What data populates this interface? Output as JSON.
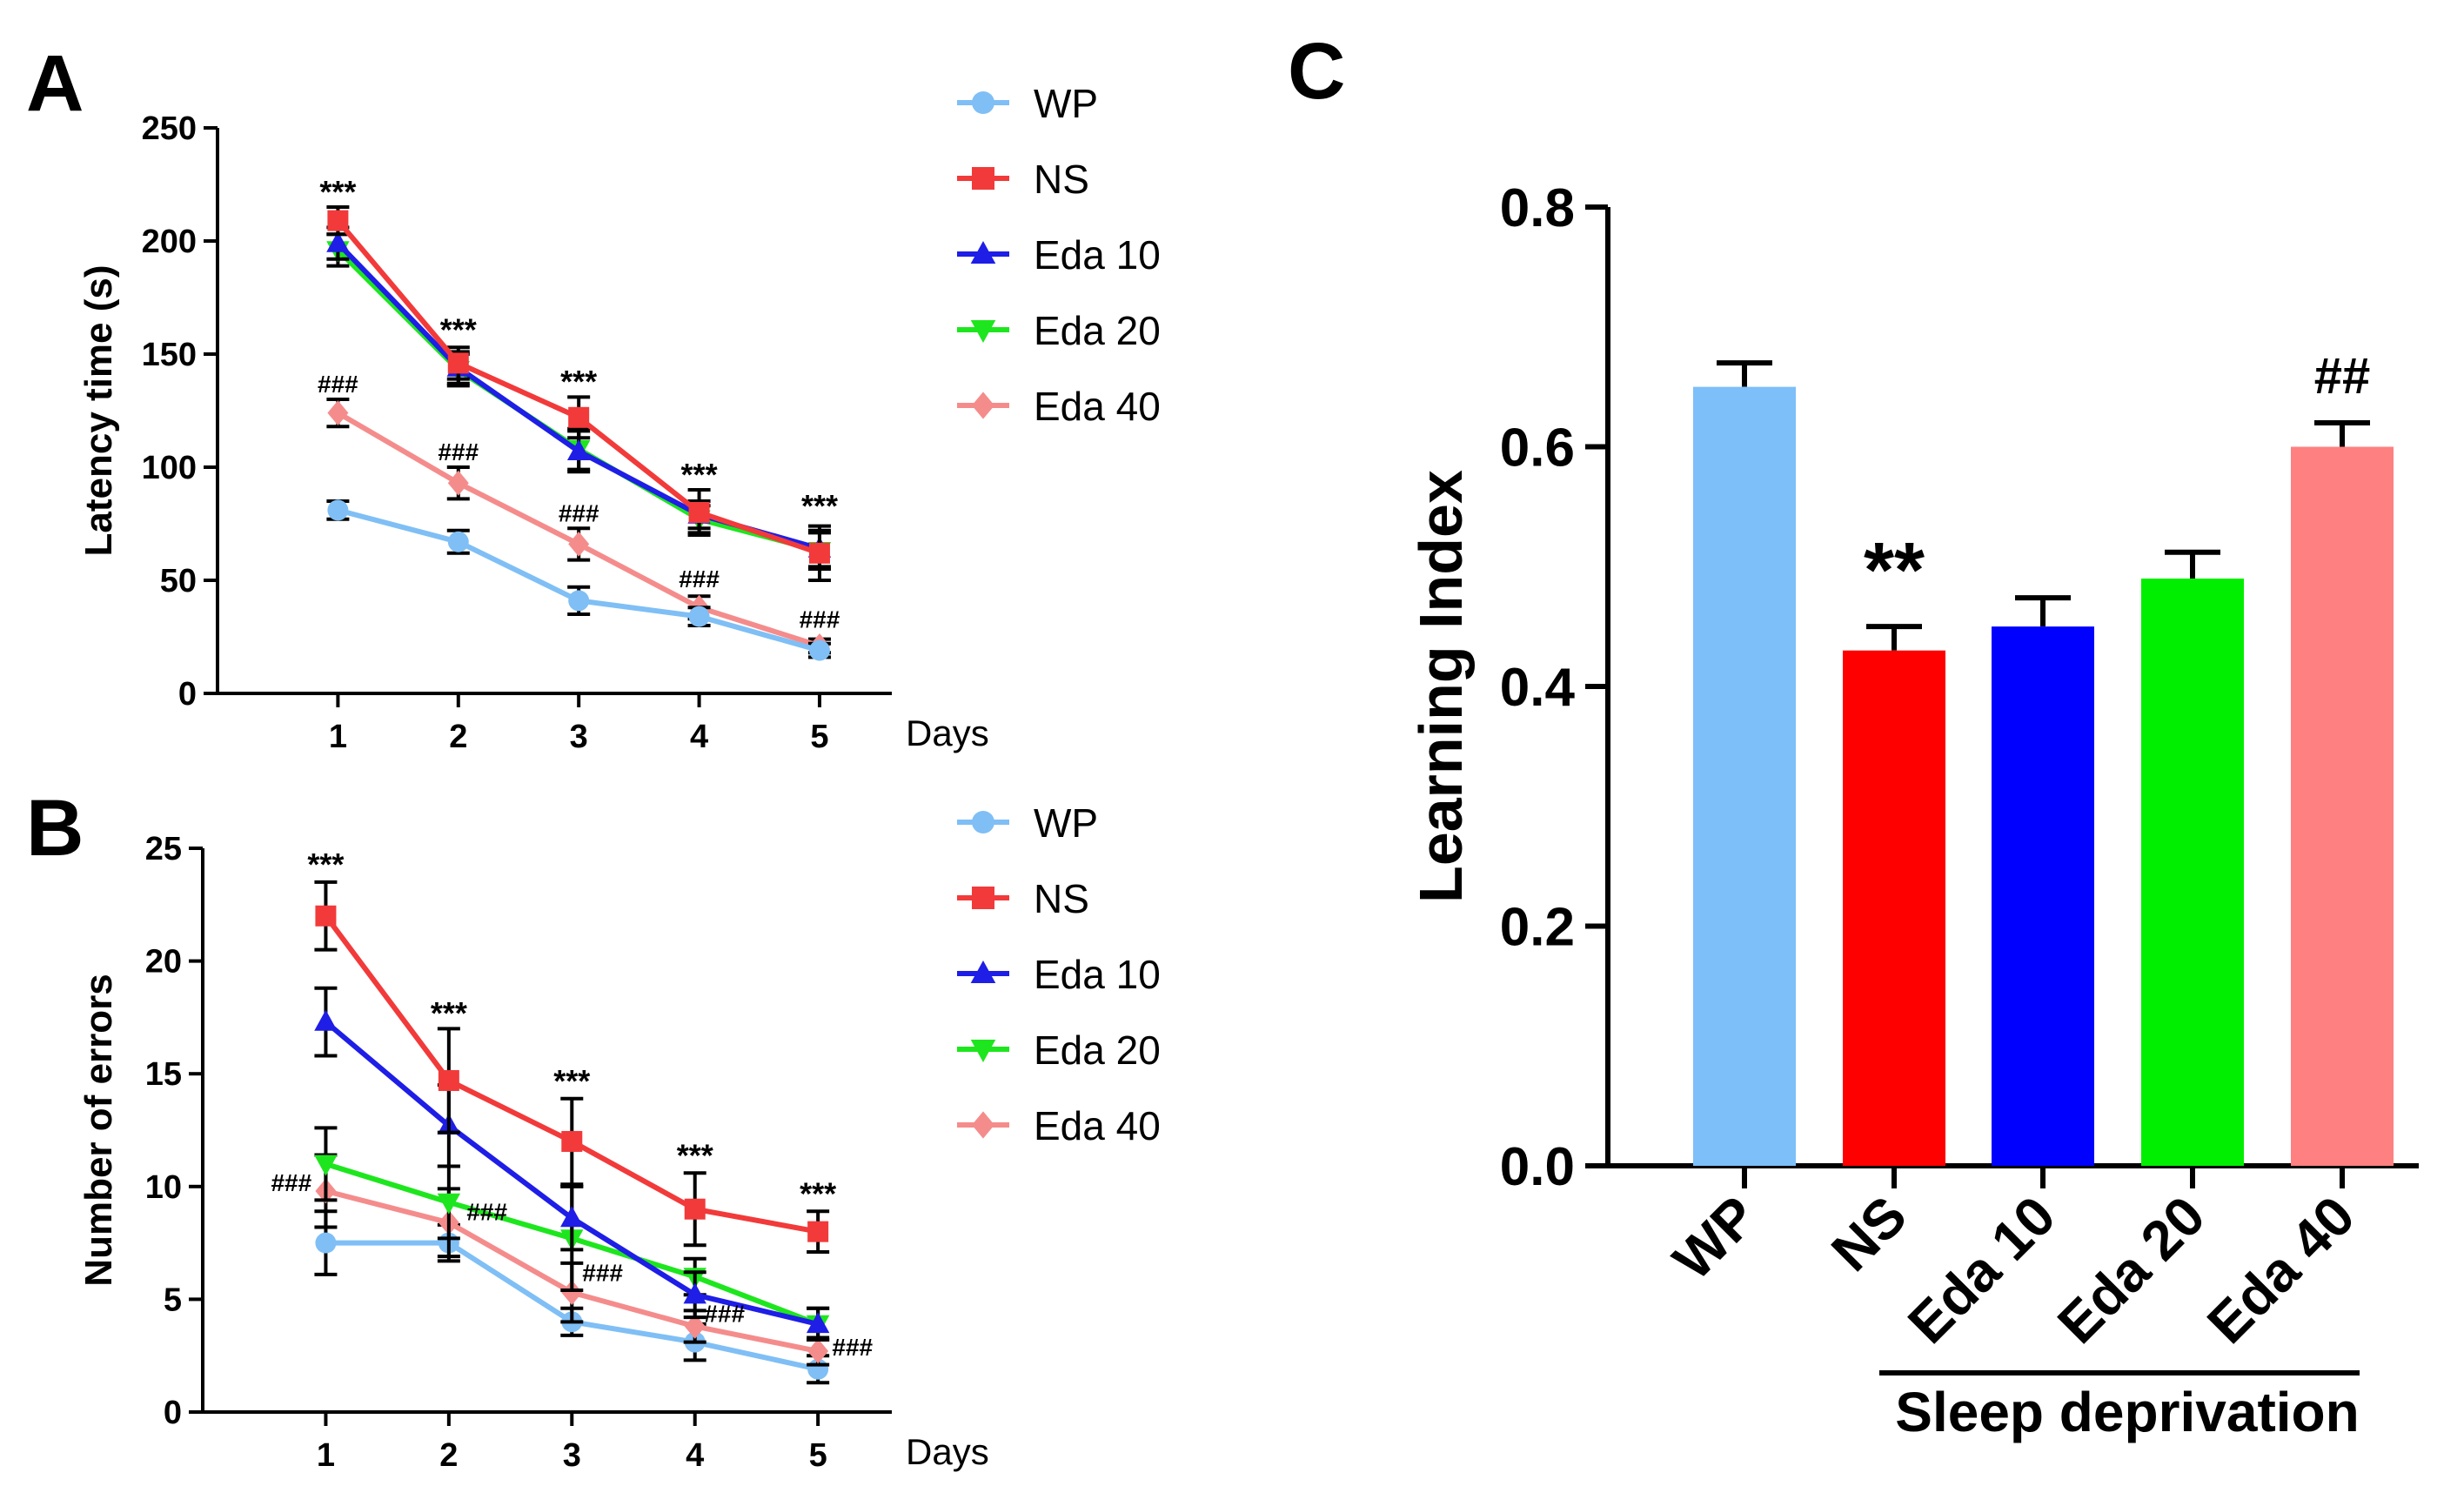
{
  "figure": {
    "colors": {
      "WP": "#7fbff5",
      "NS": "#f23a3a",
      "Eda 10": "#1e1ee6",
      "Eda 20": "#1ee61e",
      "Eda 40": "#f58c8c",
      "axis": "#000000",
      "bar_WP": "#7dbff9",
      "bar_NS": "#ff0000",
      "bar_Eda 10": "#0000ff",
      "bar_Eda 20": "#00ee00",
      "bar_Eda 40": "#ff8080"
    },
    "markers": {
      "WP": "circle",
      "NS": "square",
      "Eda 10": "triangle-up",
      "Eda 20": "triangle-down",
      "Eda 40": "diamond"
    }
  },
  "chart_data": [
    {
      "panel": "A",
      "type": "line",
      "ylabel": "Latency time (s)",
      "xlabel": "Days",
      "x": [
        1,
        2,
        3,
        4,
        5
      ],
      "xlim": [
        0,
        5.6
      ],
      "ylim": [
        0,
        250
      ],
      "yticks": [
        0,
        50,
        100,
        150,
        200,
        250
      ],
      "xticks": [
        1,
        2,
        3,
        4,
        5
      ],
      "legend": [
        "WP",
        "NS",
        "Eda 10",
        "Eda 20",
        "Eda 40"
      ],
      "series": [
        {
          "name": "Eda 20",
          "values": [
            196,
            143,
            108,
            77,
            63
          ],
          "errors": [
            7,
            7,
            9,
            6,
            8
          ]
        },
        {
          "name": "Eda 10",
          "values": [
            199,
            144,
            107,
            79,
            64
          ],
          "errors": [
            7,
            7,
            9,
            6,
            8
          ]
        },
        {
          "name": "NS",
          "values": [
            209,
            146,
            122,
            80,
            62
          ],
          "errors": [
            6,
            7,
            9,
            10,
            12
          ]
        },
        {
          "name": "Eda 40",
          "values": [
            124,
            93,
            66,
            38,
            21
          ],
          "errors": [
            6,
            7,
            7,
            5,
            3
          ]
        },
        {
          "name": "WP",
          "values": [
            81,
            67,
            41,
            34,
            19
          ],
          "errors": [
            4,
            5,
            6,
            4,
            3
          ]
        }
      ],
      "annotations": [
        {
          "x": 1,
          "y": 217,
          "text": "***"
        },
        {
          "x": 2,
          "y": 156,
          "text": "***"
        },
        {
          "x": 3,
          "y": 133,
          "text": "***"
        },
        {
          "x": 4,
          "y": 92,
          "text": "***"
        },
        {
          "x": 5,
          "y": 78,
          "text": "***"
        },
        {
          "x": 1,
          "y": 133,
          "text": "###"
        },
        {
          "x": 2,
          "y": 103,
          "text": "###"
        },
        {
          "x": 3,
          "y": 76,
          "text": "###"
        },
        {
          "x": 4,
          "y": 47,
          "text": "###"
        },
        {
          "x": 5,
          "y": 29,
          "text": "###"
        }
      ]
    },
    {
      "panel": "B",
      "type": "line",
      "ylabel": "Number of errors",
      "xlabel": "Days",
      "x": [
        1,
        2,
        3,
        4,
        5
      ],
      "xlim": [
        0,
        5.6
      ],
      "ylim": [
        0,
        25
      ],
      "yticks": [
        0,
        5,
        10,
        15,
        20,
        25
      ],
      "xticks": [
        1,
        2,
        3,
        4,
        5
      ],
      "legend": [
        "WP",
        "NS",
        "Eda 10",
        "Eda 20",
        "Eda 40"
      ],
      "series": [
        {
          "name": "WP",
          "values": [
            7.5,
            7.5,
            4.0,
            3.1,
            1.9
          ],
          "errors": [
            1.4,
            0.8,
            0.6,
            0.8,
            0.6
          ]
        },
        {
          "name": "Eda 40",
          "values": [
            9.8,
            8.4,
            5.3,
            3.8,
            2.7
          ],
          "errors": [
            1.6,
            1.5,
            1.3,
            0.7,
            0.6
          ]
        },
        {
          "name": "Eda 20",
          "values": [
            11.0,
            9.3,
            7.7,
            6.0,
            3.9
          ],
          "errors": [
            1.6,
            1.6,
            2.3,
            0.8,
            0.7
          ]
        },
        {
          "name": "Eda 10",
          "values": [
            17.3,
            12.7,
            8.6,
            5.2,
            3.9
          ],
          "errors": [
            1.5,
            1.8,
            1.4,
            1.0,
            0.7
          ]
        },
        {
          "name": "NS",
          "values": [
            22.0,
            14.7,
            12.0,
            9.0,
            8.0
          ],
          "errors": [
            1.5,
            2.3,
            1.9,
            1.6,
            0.9
          ]
        }
      ],
      "annotations": [
        {
          "x": 1,
          "y": 23.8,
          "text": "***"
        },
        {
          "x": 2,
          "y": 17.2,
          "text": "***"
        },
        {
          "x": 3,
          "y": 14.2,
          "text": "***"
        },
        {
          "x": 4,
          "y": 10.9,
          "text": "***"
        },
        {
          "x": 5,
          "y": 9.2,
          "text": "***"
        },
        {
          "x": 0.72,
          "y": 9.8,
          "text": "###"
        },
        {
          "x": 2.31,
          "y": 8.5,
          "text": "###"
        },
        {
          "x": 3.25,
          "y": 5.8,
          "text": "###"
        },
        {
          "x": 4.24,
          "y": 4.0,
          "text": "###"
        },
        {
          "x": 5.28,
          "y": 2.5,
          "text": "###"
        }
      ]
    },
    {
      "panel": "C",
      "type": "bar",
      "ylabel": "Learning Index",
      "categories": [
        "WP",
        "NS",
        "Eda 10",
        "Eda 20",
        "Eda 40"
      ],
      "values": [
        0.65,
        0.43,
        0.45,
        0.49,
        0.6
      ],
      "errors": [
        0.02,
        0.02,
        0.024,
        0.022,
        0.02
      ],
      "ylim": [
        0,
        0.8
      ],
      "yticks": [
        "0.0",
        "0.2",
        "0.4",
        "0.6",
        "0.8"
      ],
      "annotations": [
        {
          "category": "NS",
          "text": "**"
        },
        {
          "category": "Eda 40",
          "text": "##"
        }
      ],
      "group_label": "Sleep deprivation"
    }
  ]
}
